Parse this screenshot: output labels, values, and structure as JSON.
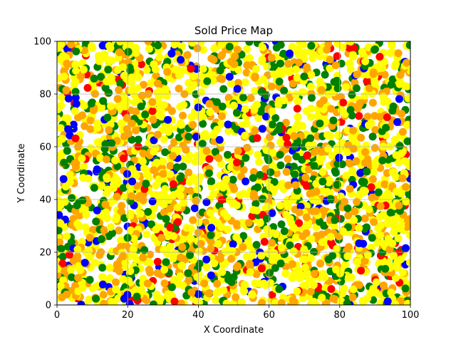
{
  "chart_data": {
    "type": "scatter",
    "title": "Sold Price Map",
    "xlabel": "X Coordinate",
    "ylabel": "Y Coordinate",
    "xlim": [
      0,
      100
    ],
    "ylim": [
      0,
      100
    ],
    "xticks": [
      "0",
      "20",
      "40",
      "60",
      "80",
      "100"
    ],
    "yticks": [
      "0",
      "20",
      "40",
      "60",
      "80",
      "100"
    ],
    "grid": true,
    "legend": "none",
    "point_colors": [
      "#ffff00",
      "#ffa500",
      "#008000",
      "#ff0000",
      "#0000ff"
    ],
    "color_weights": [
      0.46,
      0.25,
      0.19,
      0.05,
      0.05
    ],
    "n_points": 3000,
    "points_note": "points uniformly distributed over the 0–100 range on both axes"
  }
}
